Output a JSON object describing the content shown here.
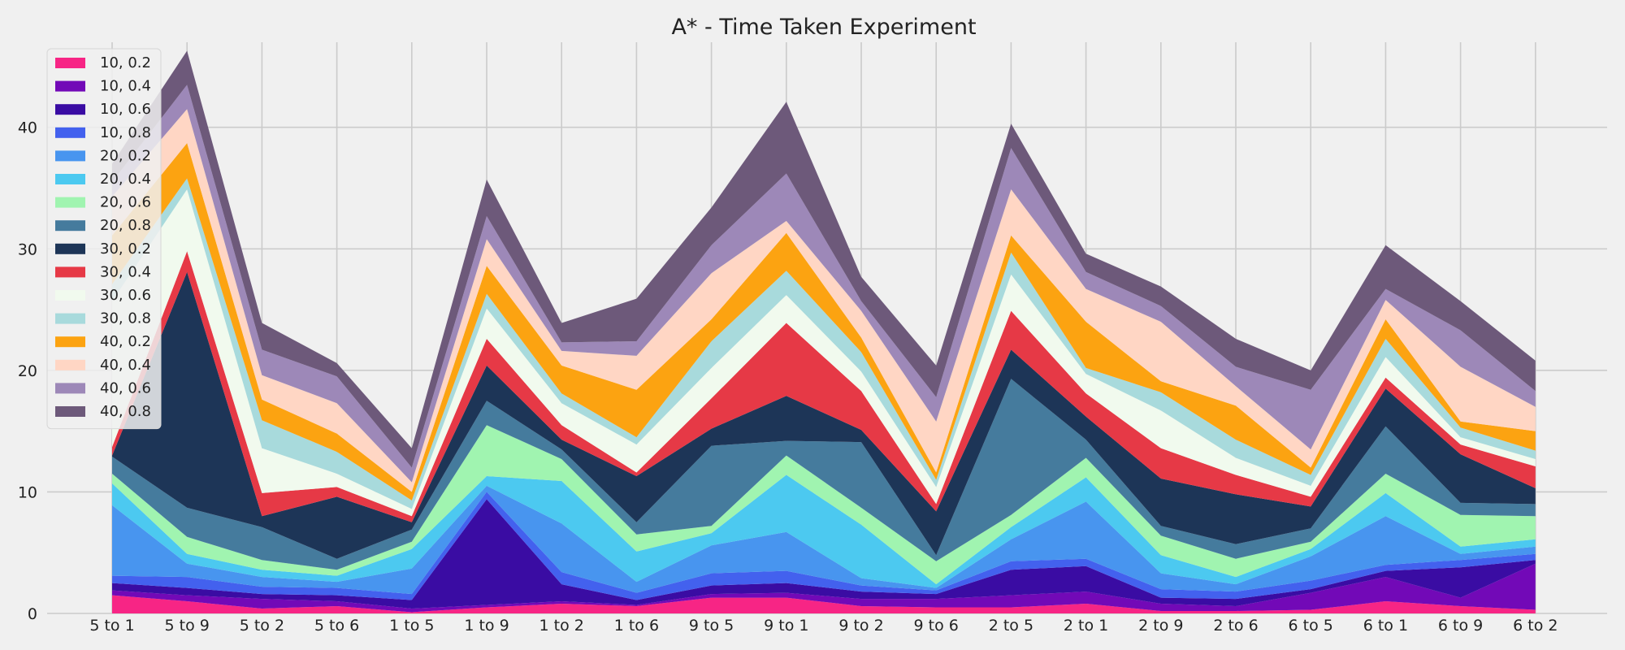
{
  "chart_data": {
    "type": "area",
    "stacked": true,
    "title": "A* - Time Taken Experiment",
    "xlabel": "",
    "ylabel": "",
    "ylim": [
      0,
      47
    ],
    "yticks": [
      0,
      10,
      20,
      30,
      40
    ],
    "grid": true,
    "legend_position": "top-left",
    "categories": [
      "5 to 1",
      "5 to 9",
      "5 to 2",
      "5 to 6",
      "1 to 5",
      "1 to 9",
      "1 to 2",
      "1 to 6",
      "9 to 5",
      "9 to 1",
      "9 to 2",
      "9 to 6",
      "2 to 5",
      "2 to 1",
      "2 to 9",
      "2 to 6",
      "6 to 5",
      "6 to 1",
      "6 to 9",
      "6 to 2"
    ],
    "series": [
      {
        "name": "10, 0.2",
        "color": "#f72585",
        "values": [
          1.5,
          1.0,
          0.4,
          0.6,
          0.1,
          0.5,
          0.8,
          0.6,
          1.3,
          1.3,
          0.6,
          0.5,
          0.5,
          0.8,
          0.2,
          0.2,
          0.3,
          1.0,
          0.6,
          0.3
        ]
      },
      {
        "name": "10, 0.4",
        "color": "#7209b7",
        "values": [
          0.4,
          0.5,
          0.8,
          0.4,
          0.3,
          0.2,
          0.2,
          0.1,
          0.3,
          0.4,
          0.6,
          0.7,
          1.0,
          1.0,
          0.6,
          0.4,
          1.4,
          2.0,
          0.7,
          3.8
        ]
      },
      {
        "name": "10, 0.6",
        "color": "#3a0ca3",
        "values": [
          0.6,
          0.6,
          0.4,
          0.5,
          0.7,
          8.7,
          1.4,
          0.4,
          0.7,
          0.8,
          0.6,
          0.4,
          2.1,
          2.1,
          0.5,
          0.6,
          0.3,
          0.5,
          2.5,
          0.3
        ]
      },
      {
        "name": "10, 0.8",
        "color": "#4361ee",
        "values": [
          0.6,
          0.9,
          0.6,
          0.6,
          0.5,
          0.6,
          1.0,
          0.6,
          1.0,
          1.0,
          0.5,
          0.3,
          0.7,
          0.6,
          0.7,
          0.6,
          0.7,
          0.5,
          0.6,
          0.5
        ]
      },
      {
        "name": "20, 0.2",
        "color": "#4895ef",
        "values": [
          5.8,
          1.1,
          0.8,
          0.5,
          2.1,
          0.5,
          4.0,
          0.9,
          2.3,
          3.2,
          0.6,
          0.2,
          1.8,
          4.7,
          1.3,
          0.6,
          2.0,
          4.0,
          0.5,
          0.6
        ]
      },
      {
        "name": "20, 0.4",
        "color": "#4cc9f0",
        "values": [
          1.8,
          0.8,
          0.6,
          0.5,
          1.6,
          0.8,
          3.5,
          2.5,
          1.0,
          4.7,
          4.4,
          0.3,
          1.0,
          2.0,
          1.5,
          0.6,
          0.6,
          1.9,
          0.6,
          0.6
        ]
      },
      {
        "name": "20, 0.6",
        "color": "#a0f4b0",
        "values": [
          0.8,
          1.4,
          0.8,
          0.5,
          0.6,
          4.2,
          1.8,
          1.4,
          0.6,
          1.6,
          1.4,
          1.9,
          1.0,
          1.6,
          1.6,
          1.5,
          0.6,
          1.6,
          2.6,
          1.9
        ]
      },
      {
        "name": "20, 0.8",
        "color": "#457b9d",
        "values": [
          1.4,
          2.4,
          2.7,
          0.9,
          1.0,
          2.0,
          0.8,
          1.0,
          6.6,
          1.2,
          5.4,
          0.5,
          11.2,
          1.5,
          0.8,
          1.2,
          1.1,
          3.9,
          1.0,
          1.0
        ]
      },
      {
        "name": "30, 0.2",
        "color": "#1d3557",
        "values": [
          0.1,
          19.4,
          0.9,
          5.1,
          0.6,
          2.9,
          0.8,
          3.8,
          1.4,
          3.7,
          1.0,
          3.6,
          2.4,
          1.9,
          3.9,
          4.1,
          1.8,
          3.1,
          4.0,
          1.3
        ]
      },
      {
        "name": "30, 0.4",
        "color": "#e63946",
        "values": [
          0.7,
          1.7,
          1.9,
          0.8,
          0.5,
          2.2,
          1.2,
          0.3,
          2.5,
          6.0,
          3.2,
          0.6,
          3.2,
          1.9,
          2.5,
          1.6,
          0.8,
          0.9,
          0.8,
          1.8
        ]
      },
      {
        "name": "30, 0.6",
        "color": "#f1faee",
        "values": [
          12.0,
          5.1,
          3.7,
          1.1,
          0.6,
          2.5,
          1.8,
          2.3,
          2.5,
          2.3,
          1.6,
          1.4,
          3.0,
          1.6,
          3.1,
          1.4,
          0.9,
          1.7,
          0.6,
          0.6
        ]
      },
      {
        "name": "30, 0.8",
        "color": "#a8dadc",
        "values": [
          1.4,
          0.9,
          2.3,
          1.8,
          0.7,
          1.2,
          0.8,
          0.6,
          2.2,
          2.0,
          1.6,
          0.6,
          1.8,
          0.5,
          1.5,
          1.5,
          0.9,
          1.5,
          0.8,
          0.7
        ]
      },
      {
        "name": "40, 0.2",
        "color": "#fca311",
        "values": [
          4.0,
          2.9,
          1.7,
          1.5,
          0.7,
          2.3,
          2.3,
          3.9,
          1.8,
          3.1,
          1.2,
          0.6,
          1.4,
          3.8,
          0.9,
          2.8,
          0.6,
          1.6,
          0.5,
          1.6
        ]
      },
      {
        "name": "40, 0.4",
        "color": "#ffd6c4",
        "values": [
          3.2,
          2.8,
          2.0,
          2.5,
          0.8,
          2.2,
          1.2,
          2.8,
          3.8,
          1.0,
          2.2,
          4.2,
          3.8,
          2.7,
          4.9,
          1.6,
          1.5,
          1.6,
          4.5,
          2.0
        ]
      },
      {
        "name": "40, 0.6",
        "color": "#9d88b8",
        "values": [
          1.2,
          2.0,
          2.1,
          2.2,
          1.2,
          1.9,
          0.7,
          1.2,
          2.3,
          3.9,
          0.8,
          2.0,
          3.4,
          1.4,
          1.3,
          1.6,
          4.9,
          0.9,
          3.0,
          1.3
        ]
      },
      {
        "name": "40, 0.8",
        "color": "#6d597a",
        "values": [
          1.5,
          2.8,
          2.2,
          1.1,
          1.6,
          3.0,
          1.6,
          3.5,
          3.1,
          5.9,
          2.0,
          2.6,
          2.0,
          1.5,
          1.6,
          2.3,
          1.6,
          3.6,
          2.4,
          2.5
        ]
      }
    ]
  }
}
